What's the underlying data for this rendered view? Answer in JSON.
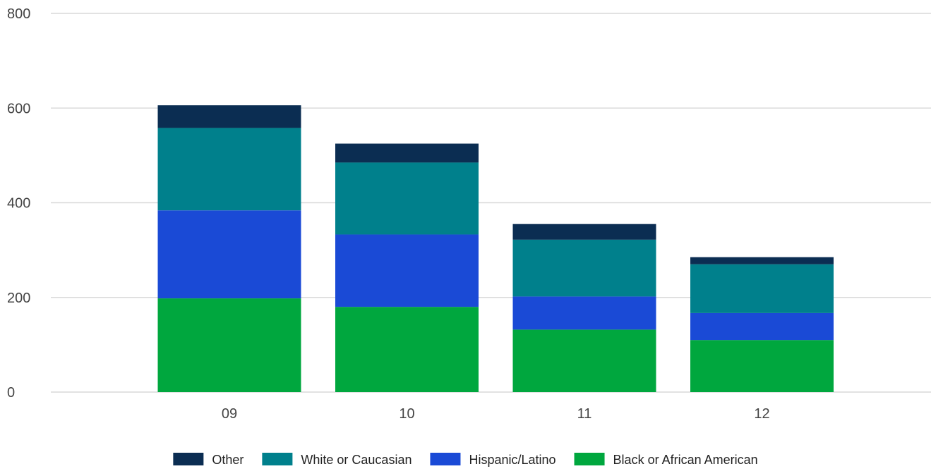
{
  "chart_data": {
    "type": "bar",
    "stacked": true,
    "categories": [
      "09",
      "10",
      "11",
      "12"
    ],
    "series": [
      {
        "name": "Black or African American",
        "color": "#00A73E",
        "values": [
          198,
          180,
          132,
          110
        ]
      },
      {
        "name": "Hispanic/Latino",
        "color": "#1A4AD6",
        "values": [
          186,
          153,
          70,
          57
        ]
      },
      {
        "name": "White or Caucasian",
        "color": "#00808C",
        "values": [
          174,
          152,
          120,
          103
        ]
      },
      {
        "name": "Other",
        "color": "#0B2D52",
        "values": [
          48,
          40,
          33,
          15
        ]
      }
    ],
    "legend_order": [
      "Other",
      "White or Caucasian",
      "Hispanic/Latino",
      "Black or African American"
    ],
    "title": "",
    "xlabel": "",
    "ylabel": "",
    "ylim": [
      0,
      800
    ],
    "yticks": [
      "0",
      "200",
      "400",
      "600",
      "800"
    ],
    "grid": true,
    "legend_position": "bottom"
  }
}
